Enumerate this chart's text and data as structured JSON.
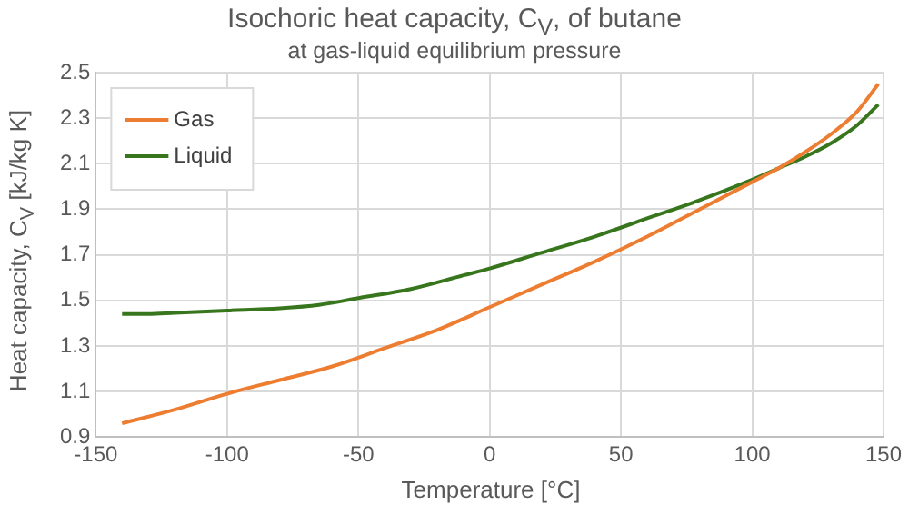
{
  "chart_data": {
    "type": "line",
    "title": "Isochoric heat capacity, C$_{V}$, of butane",
    "subtitle": "at gas-liquid equilibrium pressure",
    "xlabel": "Temperature [°C]",
    "ylabel": "Heat capacity, C$_{V}$  [kJ/kg K]",
    "series": [
      {
        "name": "Gas",
        "color": "#ed7d31",
        "x": [
          -140,
          -120,
          -100,
          -80,
          -60,
          -40,
          -20,
          0,
          20,
          40,
          60,
          80,
          100,
          110,
          120,
          130,
          140,
          148
        ],
        "values": [
          0.96,
          1.02,
          1.09,
          1.15,
          1.21,
          1.29,
          1.37,
          1.47,
          1.57,
          1.67,
          1.78,
          1.9,
          2.02,
          2.08,
          2.15,
          2.23,
          2.33,
          2.45
        ]
      },
      {
        "name": "Liquid",
        "color": "#38761d",
        "x": [
          -140,
          -130,
          -120,
          -100,
          -80,
          -65,
          -50,
          -30,
          -10,
          0,
          20,
          40,
          60,
          80,
          100,
          110,
          120,
          130,
          140,
          148
        ],
        "values": [
          1.44,
          1.44,
          1.445,
          1.455,
          1.465,
          1.48,
          1.51,
          1.55,
          1.61,
          1.64,
          1.71,
          1.78,
          1.86,
          1.94,
          2.03,
          2.08,
          2.13,
          2.19,
          2.27,
          2.36
        ]
      }
    ],
    "xlim": [
      -150,
      150
    ],
    "xticks": [
      -150,
      -100,
      -50,
      0,
      50,
      100,
      150
    ],
    "ylim": [
      0.9,
      2.5
    ],
    "yticks": [
      0.9,
      1.1,
      1.3,
      1.5,
      1.7,
      1.9,
      2.1,
      2.3,
      2.5
    ],
    "grid": true,
    "legend": "top left",
    "marker": "none",
    "line_style": "solid"
  }
}
